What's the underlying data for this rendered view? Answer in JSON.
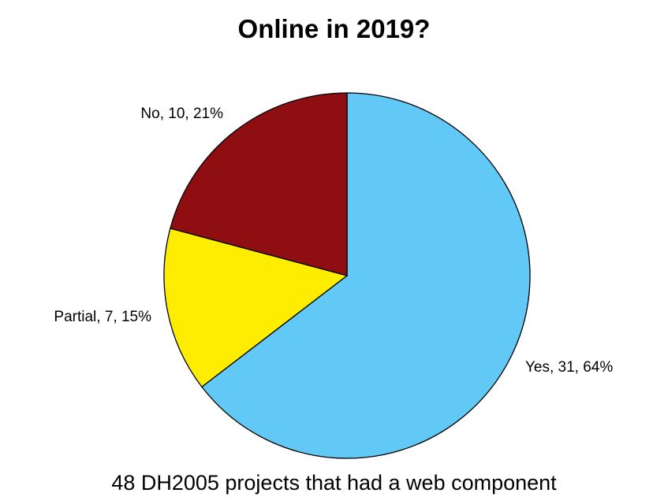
{
  "chart_data": {
    "type": "pie",
    "title": "Online in 2019?",
    "caption": "48 DH2005 projects that had a web component",
    "slices": [
      {
        "name": "Yes",
        "value": 31,
        "label": "Yes, 31, 64%",
        "color": "#62C8F5"
      },
      {
        "name": "Partial",
        "value": 7,
        "label": "Partial, 7, 15%",
        "color": "#FFED00"
      },
      {
        "name": "No",
        "value": 10,
        "label": "No, 10, 21%",
        "color": "#8E0E12"
      }
    ],
    "start": "12 o'clock",
    "direction": "clockwise",
    "legend": "none"
  }
}
